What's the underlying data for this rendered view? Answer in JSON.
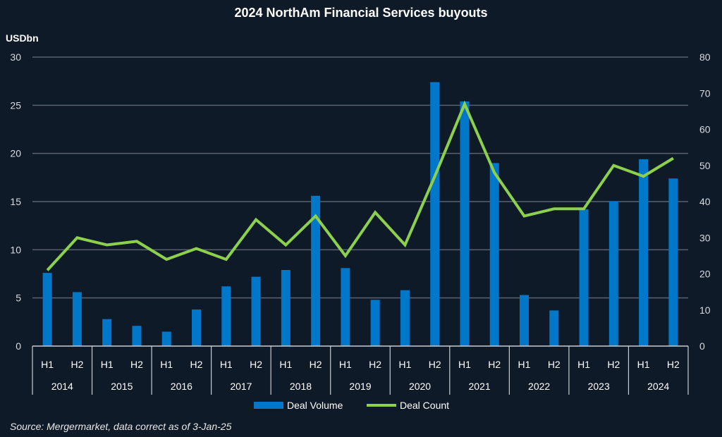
{
  "chart_data": {
    "type": "bar",
    "title": "2024 NorthAm Financial Services buyouts",
    "ylabel": "USDbn",
    "source": "Source: Mergermarket, data correct as of 3-Jan-25",
    "years": [
      "2014",
      "2015",
      "2016",
      "2017",
      "2018",
      "2019",
      "2020",
      "2021",
      "2022",
      "2023",
      "2024"
    ],
    "halves": [
      "H1",
      "H2"
    ],
    "ylim": [
      0,
      30
    ],
    "y2lim": [
      0,
      80
    ],
    "yticks": [
      0,
      5,
      10,
      15,
      20,
      25,
      30
    ],
    "y2ticks": [
      0,
      10,
      20,
      30,
      40,
      50,
      60,
      70,
      80
    ],
    "grid": true,
    "legend_position": "bottom",
    "series": [
      {
        "name": "Deal Volume",
        "type": "bar",
        "axis": "left",
        "color": "#0077c8",
        "values": [
          7.6,
          5.6,
          2.8,
          2.1,
          1.5,
          3.8,
          6.2,
          7.2,
          7.9,
          15.6,
          8.1,
          4.8,
          5.8,
          27.4,
          25.4,
          19.0,
          5.3,
          3.7,
          14.2,
          15.0,
          19.4,
          17.4
        ]
      },
      {
        "name": "Deal Count",
        "type": "line",
        "axis": "right",
        "color": "#8dd04b",
        "values": [
          21,
          30,
          28,
          29,
          24,
          27,
          24,
          35,
          28,
          36,
          25,
          37,
          28,
          47,
          67,
          48,
          36,
          38,
          38,
          50,
          47,
          52
        ]
      }
    ]
  }
}
